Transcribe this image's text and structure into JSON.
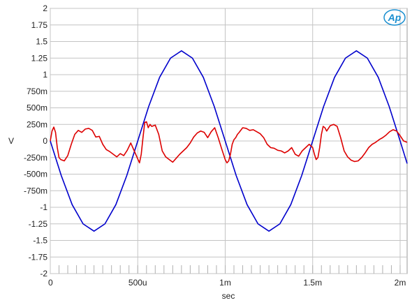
{
  "chart_data": {
    "type": "line",
    "title": "",
    "xlabel": "sec",
    "ylabel": "V",
    "xlim": [
      0,
      0.00204
    ],
    "ylim": [
      -2,
      2
    ],
    "grid": true,
    "logo": "Ap",
    "x_ticks": [
      {
        "value": 0,
        "label": "0"
      },
      {
        "value": 0.0005,
        "label": "500u"
      },
      {
        "value": 0.001,
        "label": "1m"
      },
      {
        "value": 0.0015,
        "label": "1.5m"
      },
      {
        "value": 0.002,
        "label": "2m"
      }
    ],
    "y_ticks": [
      {
        "value": 2,
        "label": "2"
      },
      {
        "value": 1.75,
        "label": "1.75"
      },
      {
        "value": 1.5,
        "label": "1.5"
      },
      {
        "value": 1.25,
        "label": "1.25"
      },
      {
        "value": 1,
        "label": "1"
      },
      {
        "value": 0.75,
        "label": "750m"
      },
      {
        "value": 0.5,
        "label": "500m"
      },
      {
        "value": 0.25,
        "label": "250m"
      },
      {
        "value": 0,
        "label": "0"
      },
      {
        "value": -0.25,
        "label": "-250m"
      },
      {
        "value": -0.5,
        "label": "-500m"
      },
      {
        "value": -0.75,
        "label": "-750m"
      },
      {
        "value": -1,
        "label": "-1"
      },
      {
        "value": -1.25,
        "label": "-1.25"
      },
      {
        "value": -1.5,
        "label": "-1.5"
      },
      {
        "value": -1.75,
        "label": "-1.75"
      },
      {
        "value": -2,
        "label": "-2"
      }
    ],
    "series": [
      {
        "color": "#0000cc",
        "x": [
          0,
          6.25e-05,
          0.000125,
          0.0001875,
          0.00025,
          0.0003125,
          0.000375,
          0.0004375,
          0.0005,
          0.0005625,
          0.000625,
          0.0006875,
          0.00075,
          0.0008125,
          0.000875,
          0.0009375,
          0.001,
          0.0010625,
          0.001125,
          0.0011875,
          0.00125,
          0.0013125,
          0.001375,
          0.0014375,
          0.0015,
          0.0015625,
          0.001625,
          0.0016875,
          0.00175,
          0.0018125,
          0.001875,
          0.0019375,
          0.002,
          0.00204
        ],
        "y": [
          0,
          -0.52,
          -0.96,
          -1.25,
          -1.36,
          -1.25,
          -0.96,
          -0.52,
          0,
          0.52,
          0.96,
          1.25,
          1.36,
          1.25,
          0.96,
          0.52,
          0,
          -0.52,
          -0.96,
          -1.25,
          -1.36,
          -1.25,
          -0.96,
          -0.52,
          0,
          0.52,
          0.96,
          1.25,
          1.36,
          1.25,
          0.96,
          0.52,
          0,
          -0.34
        ]
      },
      {
        "color": "#dd0000",
        "x": [
          0,
          1e-05,
          2e-05,
          3e-05,
          4e-05,
          5e-05,
          6e-05,
          8e-05,
          0.0001,
          0.00012,
          0.00014,
          0.00016,
          0.00018,
          0.0002,
          0.00022,
          0.00024,
          0.00026,
          0.00028,
          0.0003,
          0.00032,
          0.00034,
          0.00036,
          0.00038,
          0.0004,
          0.00042,
          0.00044,
          0.00046,
          0.00048,
          0.0005,
          0.00051,
          0.00052,
          0.00053,
          0.00054,
          0.00055,
          0.00056,
          0.00057,
          0.00058,
          0.0006,
          0.00062,
          0.00064,
          0.00066,
          0.00068,
          0.0007,
          0.00072,
          0.00074,
          0.00076,
          0.00078,
          0.0008,
          0.00082,
          0.00084,
          0.00086,
          0.00088,
          0.0009,
          0.00092,
          0.00094,
          0.00096,
          0.00098,
          0.001,
          0.00101,
          0.00102,
          0.00103,
          0.00104,
          0.00105,
          0.00106,
          0.00107,
          0.00108,
          0.0011,
          0.00112,
          0.00114,
          0.00116,
          0.00118,
          0.0012,
          0.00122,
          0.00124,
          0.00126,
          0.00128,
          0.0013,
          0.00132,
          0.00134,
          0.00136,
          0.00138,
          0.0014,
          0.00142,
          0.00144,
          0.00146,
          0.00148,
          0.0015,
          0.00151,
          0.00152,
          0.00153,
          0.00154,
          0.00155,
          0.00156,
          0.00157,
          0.00158,
          0.0016,
          0.00162,
          0.00164,
          0.00166,
          0.00168,
          0.0017,
          0.00172,
          0.00174,
          0.00176,
          0.00178,
          0.0018,
          0.00182,
          0.00184,
          0.00186,
          0.00188,
          0.0019,
          0.00192,
          0.00194,
          0.00196,
          0.00198,
          0.002,
          0.00202,
          0.00204
        ],
        "y": [
          0,
          0.15,
          0.21,
          0.13,
          -0.1,
          -0.25,
          -0.28,
          -0.3,
          -0.22,
          -0.05,
          0.1,
          0.16,
          0.13,
          0.18,
          0.19,
          0.16,
          0.06,
          0.07,
          -0.05,
          -0.13,
          -0.16,
          -0.2,
          -0.24,
          -0.19,
          -0.22,
          -0.14,
          -0.03,
          -0.15,
          -0.27,
          -0.33,
          -0.2,
          0.05,
          0.28,
          0.29,
          0.2,
          0.25,
          0.22,
          0.24,
          0.1,
          -0.15,
          -0.24,
          -0.28,
          -0.32,
          -0.26,
          -0.2,
          -0.15,
          -0.1,
          -0.03,
          0.06,
          0.12,
          0.15,
          0.13,
          0.05,
          0.14,
          0.2,
          0.05,
          -0.12,
          -0.28,
          -0.33,
          -0.3,
          -0.2,
          -0.05,
          0.02,
          0.05,
          0.1,
          0.13,
          0.2,
          0.19,
          0.16,
          0.17,
          0.14,
          0.11,
          0.05,
          -0.05,
          -0.1,
          -0.11,
          -0.14,
          -0.15,
          -0.18,
          -0.15,
          -0.1,
          -0.2,
          -0.23,
          -0.15,
          -0.1,
          -0.05,
          -0.1,
          -0.2,
          -0.28,
          -0.25,
          -0.1,
          0.1,
          0.22,
          0.2,
          0.15,
          0.23,
          0.25,
          0.22,
          0.05,
          -0.15,
          -0.24,
          -0.29,
          -0.31,
          -0.3,
          -0.25,
          -0.18,
          -0.1,
          -0.05,
          -0.02,
          0.02,
          0.05,
          0.09,
          0.14,
          0.17,
          0.15,
          0.08,
          0.0,
          -0.02
        ]
      }
    ]
  }
}
